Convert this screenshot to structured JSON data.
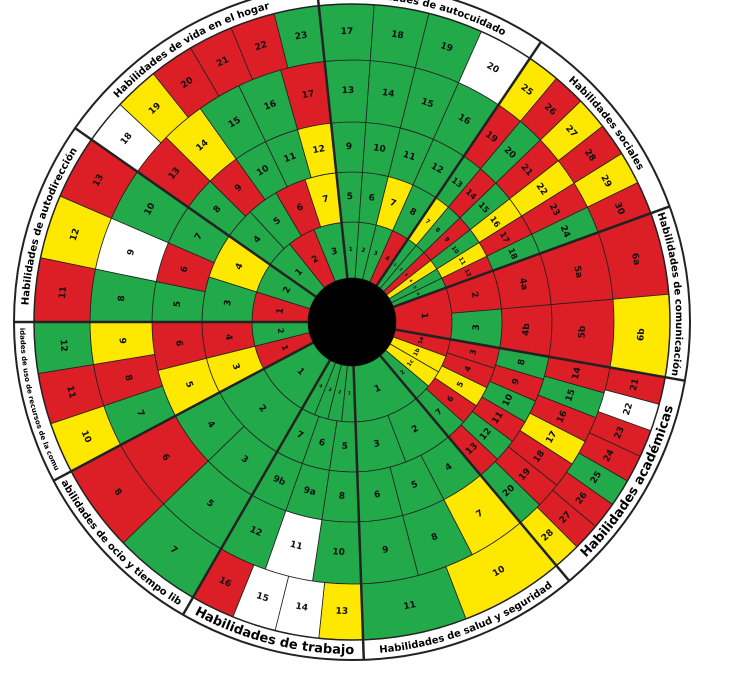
{
  "diagram": {
    "colors": {
      "green": "#22a94a",
      "red": "#dc1e26",
      "yellow": "#ffe800",
      "white": "#ffffff",
      "line": "#222222",
      "hub": "#000000"
    },
    "domains": [
      {
        "id": "autocuidado",
        "title": "Habilidades de autocuidado",
        "rings": [
          [
            {
              "c": "green",
              "t": "1"
            },
            {
              "c": "green",
              "t": "2"
            },
            {
              "c": "green",
              "t": "3"
            },
            {
              "c": "red",
              "t": "4"
            }
          ],
          [
            {
              "c": "green",
              "t": "5"
            },
            {
              "c": "green",
              "t": "6"
            },
            {
              "c": "yellow",
              "t": "7"
            },
            {
              "c": "green",
              "t": "8"
            }
          ],
          [
            {
              "c": "green",
              "t": "9"
            },
            {
              "c": "green",
              "t": "10"
            },
            {
              "c": "green",
              "t": "11"
            },
            {
              "c": "green",
              "t": "12"
            }
          ],
          [
            {
              "c": "green",
              "t": "13"
            },
            {
              "c": "green",
              "t": "14"
            },
            {
              "c": "green",
              "t": "15"
            },
            {
              "c": "green",
              "t": "16"
            }
          ],
          [
            {
              "c": "green",
              "t": "17"
            },
            {
              "c": "green",
              "t": "18"
            },
            {
              "c": "green",
              "t": "19"
            },
            {
              "c": "white",
              "t": "20"
            }
          ]
        ]
      },
      {
        "id": "sociales",
        "title": "Habilidades sociales",
        "rings": [
          [
            {
              "c": "green",
              "t": "1"
            },
            {
              "c": "green",
              "t": "2"
            },
            {
              "c": "red",
              "t": "3"
            },
            {
              "c": "yellow",
              "t": "4"
            },
            {
              "c": "green",
              "t": "5"
            },
            {
              "c": "green",
              "t": "6"
            }
          ],
          [
            {
              "c": "yellow",
              "t": "7"
            },
            {
              "c": "green",
              "t": "8"
            },
            {
              "c": "red",
              "t": "9"
            },
            {
              "c": "green",
              "t": "10"
            },
            {
              "c": "yellow",
              "t": "11"
            },
            {
              "c": "red",
              "t": "12"
            }
          ],
          [
            {
              "c": "green",
              "t": "13"
            },
            {
              "c": "red",
              "t": "14"
            },
            {
              "c": "green",
              "t": "15"
            },
            {
              "c": "yellow",
              "t": "16"
            },
            {
              "c": "red",
              "t": "17"
            },
            {
              "c": "green",
              "t": "18"
            }
          ],
          [
            {
              "c": "red",
              "t": "19"
            },
            {
              "c": "green",
              "t": "20"
            },
            {
              "c": "red",
              "t": "21"
            },
            {
              "c": "yellow",
              "t": "22"
            },
            {
              "c": "red",
              "t": "23"
            },
            {
              "c": "green",
              "t": "24"
            }
          ],
          [
            {
              "c": "yellow",
              "t": "25"
            },
            {
              "c": "red",
              "t": "26"
            },
            {
              "c": "yellow",
              "t": "27"
            },
            {
              "c": "red",
              "t": "28"
            },
            {
              "c": "yellow",
              "t": "29"
            },
            {
              "c": "red",
              "t": "30"
            }
          ]
        ]
      },
      {
        "id": "comunicacion",
        "title": "Habilidades de comunicación",
        "rings": [
          [
            {
              "c": "red",
              "t": "1"
            }
          ],
          [
            {
              "c": "red",
              "t": "2"
            },
            {
              "c": "green",
              "t": "3"
            }
          ],
          [
            {
              "c": "red",
              "t": "4a"
            },
            {
              "c": "red",
              "t": "4b"
            }
          ],
          [
            {
              "c": "red",
              "t": "5a"
            },
            {
              "c": "red",
              "t": "5b"
            }
          ],
          [
            {
              "c": "red",
              "t": "6a"
            },
            {
              "c": "yellow",
              "t": "6b"
            }
          ]
        ]
      },
      {
        "id": "academicas",
        "title": "Habilidades académicas",
        "rings": [
          [
            {
              "c": "red",
              "t": "1a"
            },
            {
              "c": "yellow",
              "t": "1b"
            },
            {
              "c": "yellow",
              "t": "1c"
            },
            {
              "c": "green",
              "t": "2"
            }
          ],
          [
            {
              "c": "red",
              "t": "3"
            },
            {
              "c": "red",
              "t": "4"
            },
            {
              "c": "yellow",
              "t": "5"
            },
            {
              "c": "red",
              "t": "6"
            },
            {
              "c": "green",
              "t": "7"
            }
          ],
          [
            {
              "c": "green",
              "t": "8"
            },
            {
              "c": "red",
              "t": "9"
            },
            {
              "c": "green",
              "t": "10"
            },
            {
              "c": "red",
              "t": "11"
            },
            {
              "c": "green",
              "t": "12"
            },
            {
              "c": "red",
              "t": "13"
            }
          ],
          [
            {
              "c": "red",
              "t": "14"
            },
            {
              "c": "green",
              "t": "15"
            },
            {
              "c": "red",
              "t": "16"
            },
            {
              "c": "yellow",
              "t": "17"
            },
            {
              "c": "red",
              "t": "18"
            },
            {
              "c": "red",
              "t": "19"
            },
            {
              "c": "green",
              "t": "20"
            }
          ],
          [
            {
              "c": "red",
              "t": "21"
            },
            {
              "c": "white",
              "t": "22"
            },
            {
              "c": "red",
              "t": "23"
            },
            {
              "c": "red",
              "t": "24"
            },
            {
              "c": "green",
              "t": "25"
            },
            {
              "c": "red",
              "t": "26"
            },
            {
              "c": "red",
              "t": "27"
            },
            {
              "c": "yellow",
              "t": "28"
            }
          ]
        ]
      },
      {
        "id": "salud",
        "title": "Habilidades de salud y seguridad",
        "rings": [
          [
            {
              "c": "green",
              "t": "1"
            }
          ],
          [
            {
              "c": "green",
              "t": "2"
            },
            {
              "c": "green",
              "t": "3"
            }
          ],
          [
            {
              "c": "green",
              "t": "4"
            },
            {
              "c": "green",
              "t": "5"
            },
            {
              "c": "green",
              "t": "6"
            }
          ],
          [
            {
              "c": "yellow",
              "t": "7"
            },
            {
              "c": "green",
              "t": "8"
            },
            {
              "c": "green",
              "t": "9"
            }
          ],
          [
            {
              "c": "yellow",
              "t": "10"
            },
            {
              "c": "green",
              "t": "11"
            }
          ]
        ]
      },
      {
        "id": "trabajo",
        "title": "Habilidades de trabajo",
        "rings": [
          [
            {
              "c": "green",
              "t": "1"
            },
            {
              "c": "green",
              "t": "2"
            },
            {
              "c": "green",
              "t": "3"
            },
            {
              "c": "green",
              "t": "4"
            }
          ],
          [
            {
              "c": "green",
              "t": "5"
            },
            {
              "c": "green",
              "t": "6"
            },
            {
              "c": "green",
              "t": "7"
            }
          ],
          [
            {
              "c": "green",
              "t": "8"
            },
            {
              "c": "green",
              "t": "9a"
            },
            {
              "c": "green",
              "t": "9b"
            }
          ],
          [
            {
              "c": "green",
              "t": "10"
            },
            {
              "c": "white",
              "t": "11"
            },
            {
              "c": "green",
              "t": "12"
            }
          ],
          [
            {
              "c": "yellow",
              "t": "13"
            },
            {
              "c": "white",
              "t": "14"
            },
            {
              "c": "white",
              "t": "15"
            },
            {
              "c": "red",
              "t": "16"
            }
          ]
        ]
      },
      {
        "id": "ocio",
        "title": "Habilidades de ocio y tiempo libre",
        "rings": [
          [
            {
              "c": "green",
              "t": "1"
            }
          ],
          [
            {
              "c": "green",
              "t": "2"
            }
          ],
          [
            {
              "c": "green",
              "t": "3"
            },
            {
              "c": "green",
              "t": "4"
            }
          ],
          [
            {
              "c": "green",
              "t": "5"
            },
            {
              "c": "red",
              "t": "6"
            }
          ],
          [
            {
              "c": "green",
              "t": "7"
            },
            {
              "c": "red",
              "t": "8"
            }
          ]
        ]
      },
      {
        "id": "comunidad",
        "title": "Habilidades de uso de recursos de la comunidad",
        "rings": [
          [
            {
              "c": "red",
              "t": "1"
            },
            {
              "c": "green",
              "t": "2"
            }
          ],
          [
            {
              "c": "yellow",
              "t": "3"
            },
            {
              "c": "red",
              "t": "4"
            }
          ],
          [
            {
              "c": "yellow",
              "t": "5"
            },
            {
              "c": "red",
              "t": "6"
            }
          ],
          [
            {
              "c": "green",
              "t": "7"
            },
            {
              "c": "red",
              "t": "8"
            },
            {
              "c": "yellow",
              "t": "9"
            }
          ],
          [
            {
              "c": "yellow",
              "t": "10"
            },
            {
              "c": "red",
              "t": "11"
            },
            {
              "c": "green",
              "t": "12"
            }
          ]
        ]
      },
      {
        "id": "autodireccion",
        "title": "Habilidades de autodirección",
        "rings": [
          [
            {
              "c": "red",
              "t": "1"
            },
            {
              "c": "green",
              "t": "2"
            }
          ],
          [
            {
              "c": "green",
              "t": "3"
            },
            {
              "c": "yellow",
              "t": "4"
            }
          ],
          [
            {
              "c": "green",
              "t": "5"
            },
            {
              "c": "red",
              "t": "6"
            },
            {
              "c": "green",
              "t": "7"
            }
          ],
          [
            {
              "c": "green",
              "t": "8"
            },
            {
              "c": "white",
              "t": "9"
            },
            {
              "c": "green",
              "t": "10"
            }
          ],
          [
            {
              "c": "red",
              "t": "11"
            },
            {
              "c": "yellow",
              "t": "12"
            },
            {
              "c": "red",
              "t": "13"
            }
          ]
        ]
      },
      {
        "id": "hogar",
        "title": "Habilidades de vida en el hogar",
        "rings": [
          [
            {
              "c": "green",
              "t": "1"
            },
            {
              "c": "red",
              "t": "2"
            },
            {
              "c": "green",
              "t": "3"
            }
          ],
          [
            {
              "c": "green",
              "t": "4"
            },
            {
              "c": "green",
              "t": "5"
            },
            {
              "c": "red",
              "t": "6"
            },
            {
              "c": "yellow",
              "t": "7"
            }
          ],
          [
            {
              "c": "green",
              "t": "8"
            },
            {
              "c": "red",
              "t": "9"
            },
            {
              "c": "green",
              "t": "10"
            },
            {
              "c": "green",
              "t": "11"
            },
            {
              "c": "yellow",
              "t": "12"
            }
          ],
          [
            {
              "c": "red",
              "t": "13"
            },
            {
              "c": "yellow",
              "t": "14"
            },
            {
              "c": "green",
              "t": "15"
            },
            {
              "c": "green",
              "t": "16"
            },
            {
              "c": "red",
              "t": "17"
            }
          ],
          [
            {
              "c": "white",
              "t": "18"
            },
            {
              "c": "yellow",
              "t": "19"
            },
            {
              "c": "red",
              "t": "20"
            },
            {
              "c": "red",
              "t": "21"
            },
            {
              "c": "red",
              "t": "22"
            },
            {
              "c": "green",
              "t": "23"
            }
          ]
        ]
      }
    ]
  }
}
